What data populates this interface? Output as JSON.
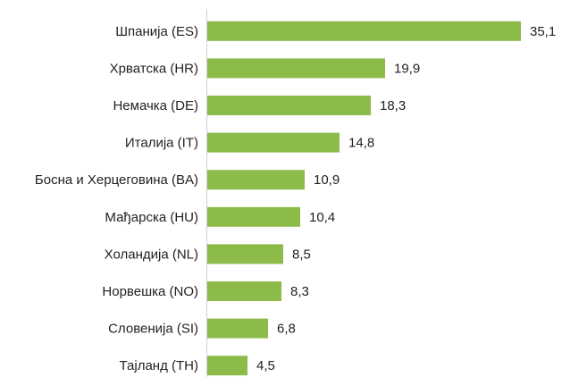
{
  "chart_data": {
    "type": "bar",
    "orientation": "horizontal",
    "categories": [
      "Шпанија (ES)",
      "Хрватска (HR)",
      "Немачка (DE)",
      "Италија (IT)",
      "Босна и Херцеговина (BA)",
      "Мађарска (HU)",
      "Холандија (NL)",
      "Норвешка (NO)",
      "Словенија (SI)",
      "Тајланд (TH)"
    ],
    "values": [
      35.1,
      19.9,
      18.3,
      14.8,
      10.9,
      10.4,
      8.5,
      8.3,
      6.8,
      4.5
    ],
    "value_labels": [
      "35,1",
      "19,9",
      "18,3",
      "14,8",
      "10,9",
      "10,4",
      "8,5",
      "8,3",
      "6,8",
      "4,5"
    ],
    "color": "#8cbb4a"
  }
}
